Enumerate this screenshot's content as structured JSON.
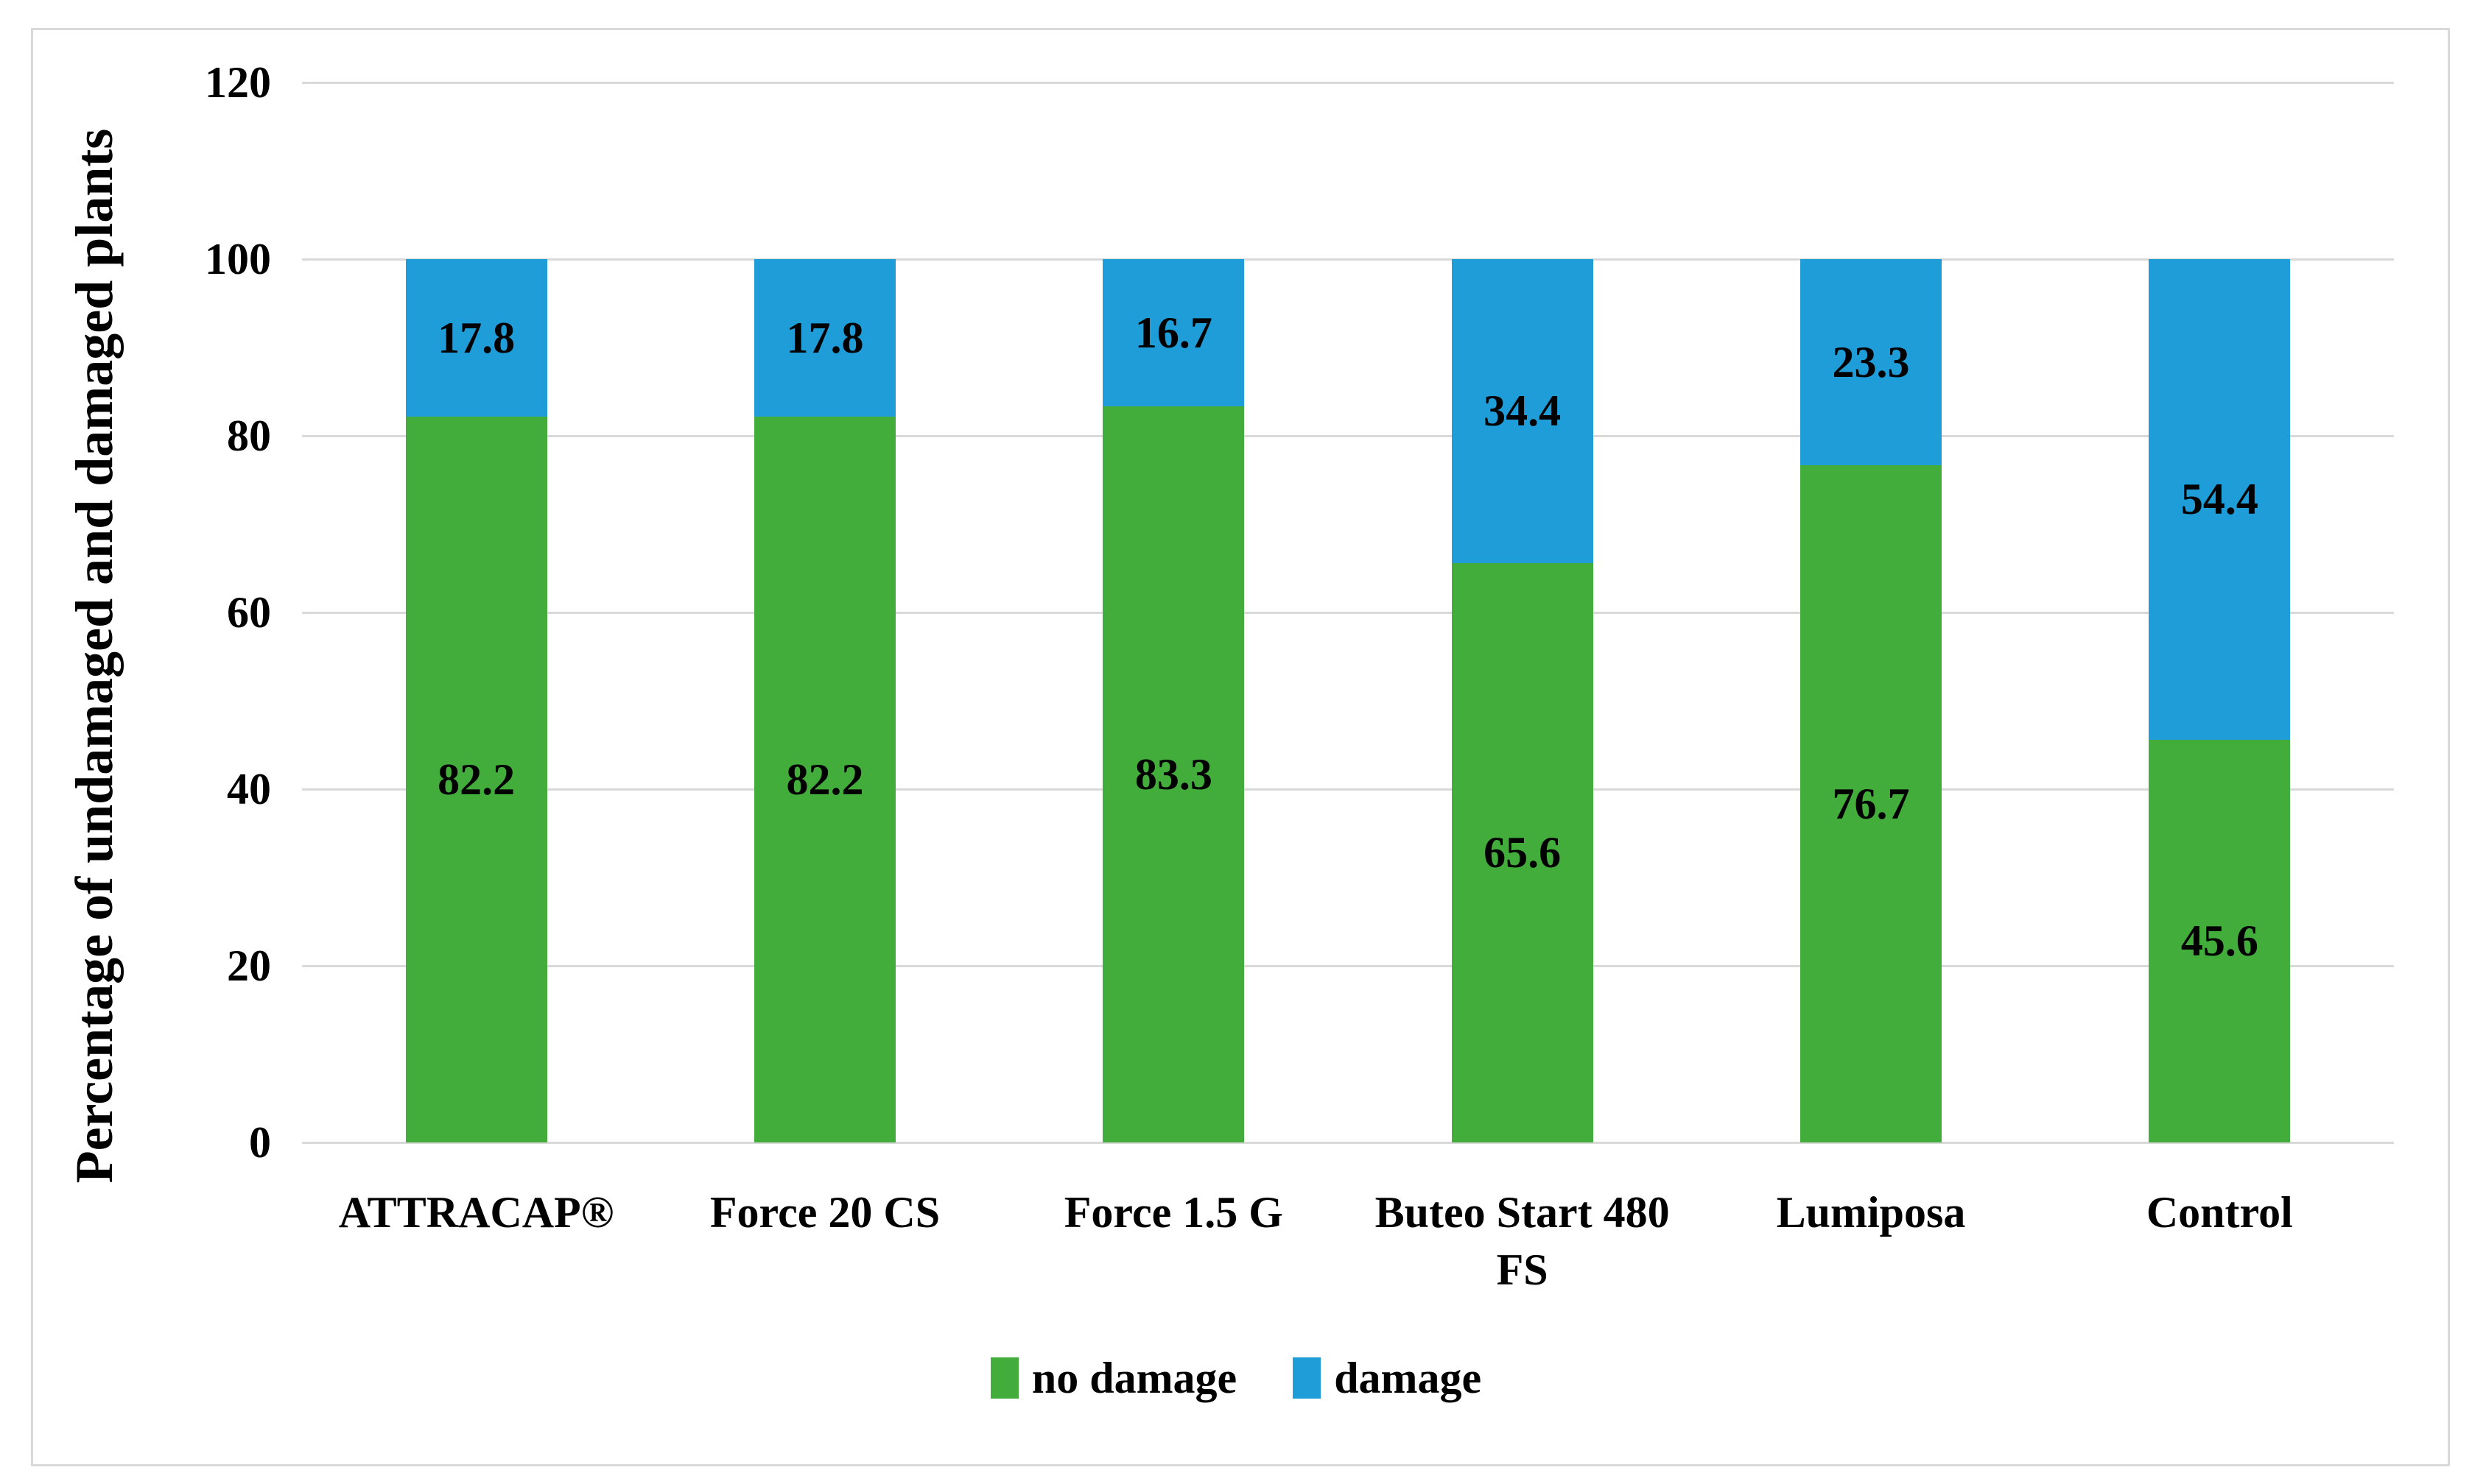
{
  "figure": {
    "background": "#ffffff",
    "border_color": "#d9d9d9"
  },
  "chart_data": {
    "type": "bar",
    "stacked": true,
    "title": "",
    "xlabel": "",
    "ylabel": "Percentage of undamaged and damaged plants",
    "ylim": [
      0,
      120
    ],
    "yticks": [
      0,
      20,
      40,
      60,
      80,
      100,
      120
    ],
    "grid": true,
    "gridline_color": "#d9d9d9",
    "legend_position": "bottom",
    "categories": [
      "ATTRACAP®",
      "Force 20 CS",
      "Force 1.5 G",
      "Buteo Start 480 FS",
      "Lumiposa",
      "Control"
    ],
    "series": [
      {
        "name": "no damage",
        "color": "#43ad3c",
        "values": [
          82.2,
          82.2,
          83.3,
          65.6,
          76.7,
          45.6
        ]
      },
      {
        "name": "damage",
        "color": "#1e9dd9",
        "values": [
          17.8,
          17.8,
          16.7,
          34.4,
          23.3,
          54.4
        ]
      }
    ],
    "value_label_color": "#000000",
    "value_label_decimals": 1
  }
}
